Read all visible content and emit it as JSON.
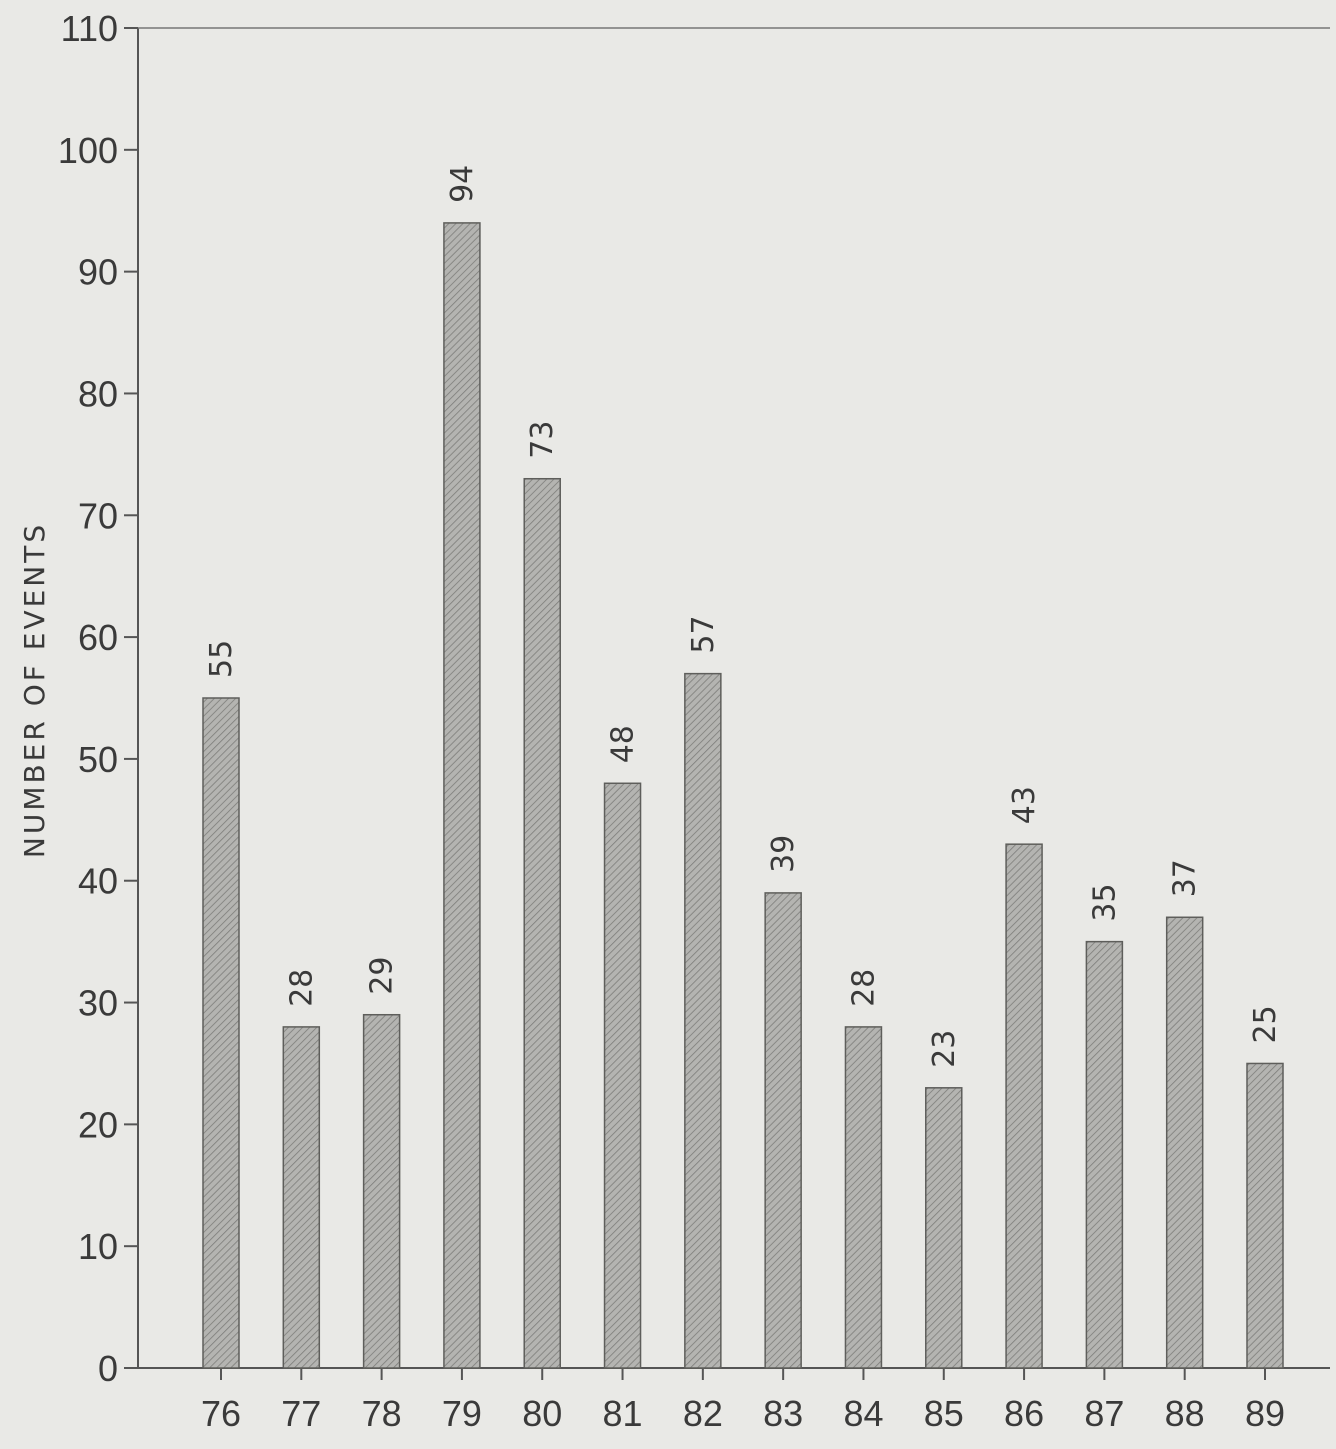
{
  "chart_data": {
    "type": "bar",
    "title": "",
    "xlabel": "",
    "ylabel": "NUMBER OF EVENTS",
    "categories": [
      "76",
      "77",
      "78",
      "79",
      "80",
      "81",
      "82",
      "83",
      "84",
      "85",
      "86",
      "87",
      "88",
      "89"
    ],
    "values": [
      55,
      28,
      29,
      94,
      73,
      48,
      57,
      39,
      28,
      23,
      43,
      35,
      37,
      25
    ],
    "data_labels": [
      "55",
      "28",
      "29",
      "94",
      "73",
      "48",
      "57",
      "39",
      "28",
      "23",
      "43",
      "35",
      "37",
      "25"
    ],
    "ylim": [
      0,
      110
    ],
    "yticks": [
      0,
      10,
      20,
      30,
      40,
      50,
      60,
      70,
      80,
      90,
      100,
      110
    ],
    "grid": false,
    "legend": "none",
    "bar_color": "#a9a9a6",
    "bar_hatch": true
  }
}
